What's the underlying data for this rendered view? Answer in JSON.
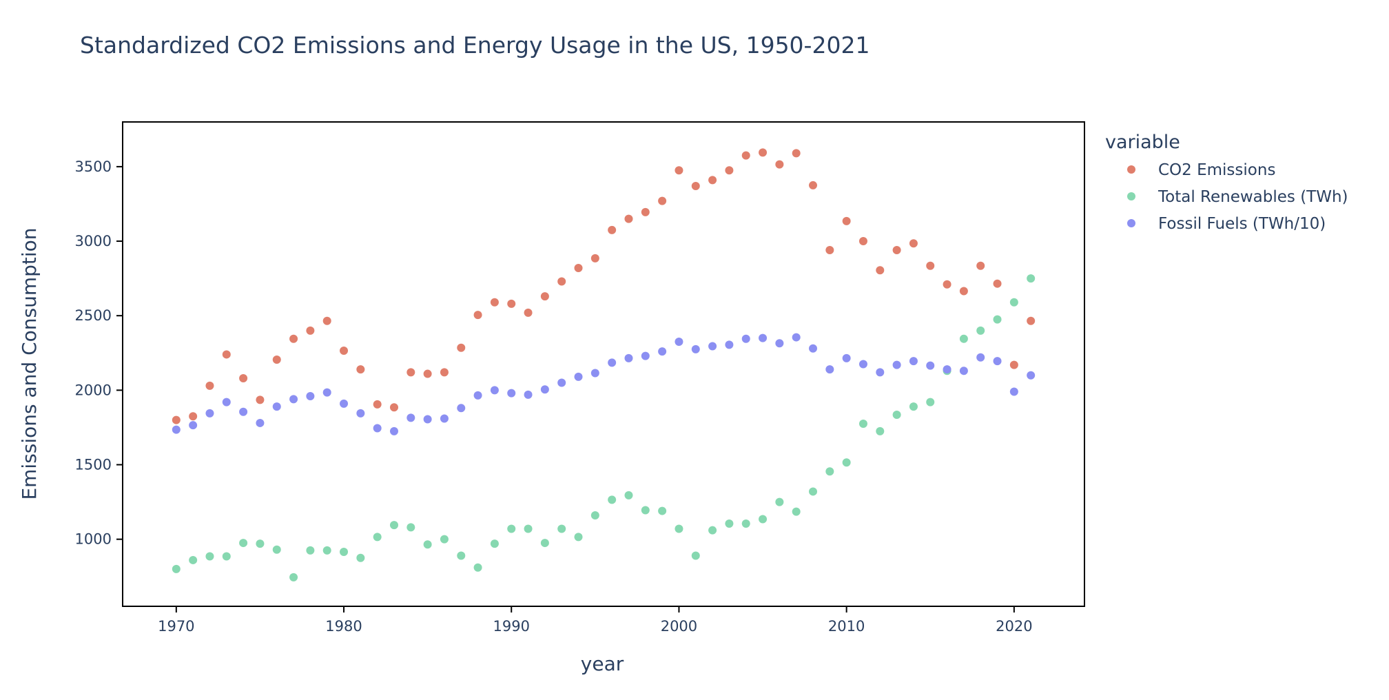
{
  "chart_data": {
    "type": "scatter",
    "title": "Standardized CO2 Emissions and Energy Usage in the US, 1950-2021",
    "xlabel": "year",
    "ylabel": "Emissions and Consumption",
    "xlim": [
      1966.8,
      2024.2
    ],
    "ylim": [
      550,
      3800
    ],
    "x_ticks": [
      1970,
      1980,
      1990,
      2000,
      2010,
      2020
    ],
    "y_ticks": [
      1000,
      1500,
      2000,
      2500,
      3000,
      3500
    ],
    "grid": false,
    "legend": {
      "title": "variable",
      "placement": "right"
    },
    "x": [
      1970,
      1971,
      1972,
      1973,
      1974,
      1975,
      1976,
      1977,
      1978,
      1979,
      1980,
      1981,
      1982,
      1983,
      1984,
      1985,
      1986,
      1987,
      1988,
      1989,
      1990,
      1991,
      1992,
      1993,
      1994,
      1995,
      1996,
      1997,
      1998,
      1999,
      2000,
      2001,
      2002,
      2003,
      2004,
      2005,
      2006,
      2007,
      2008,
      2009,
      2010,
      2011,
      2012,
      2013,
      2014,
      2015,
      2016,
      2017,
      2018,
      2019,
      2020,
      2021
    ],
    "series": [
      {
        "name": "CO2 Emissions",
        "color": "#e07e6b",
        "values": [
          1800,
          1825,
          2030,
          2240,
          2080,
          1935,
          2205,
          2345,
          2400,
          2465,
          2265,
          2140,
          1905,
          1885,
          2120,
          2110,
          2120,
          2285,
          2505,
          2590,
          2580,
          2520,
          2630,
          2730,
          2820,
          2885,
          3075,
          3150,
          3195,
          3270,
          3475,
          3370,
          3410,
          3475,
          3575,
          3595,
          3515,
          3590,
          3375,
          2940,
          3135,
          3000,
          2805,
          2940,
          2985,
          2835,
          2710,
          2665,
          2835,
          2715,
          2170,
          2465
        ]
      },
      {
        "name": "Total Renewables (TWh)",
        "color": "#86d8b0",
        "values": [
          800,
          860,
          885,
          885,
          975,
          970,
          930,
          745,
          925,
          925,
          915,
          875,
          1015,
          1095,
          1080,
          965,
          1000,
          890,
          810,
          970,
          1070,
          1070,
          975,
          1070,
          1015,
          1160,
          1265,
          1295,
          1195,
          1190,
          1070,
          890,
          1060,
          1105,
          1105,
          1135,
          1250,
          1185,
          1320,
          1455,
          1515,
          1775,
          1725,
          1835,
          1890,
          1920,
          2130,
          2345,
          2400,
          2475,
          2590,
          2750
        ]
      },
      {
        "name": "Fossil Fuels (TWh/10)",
        "color": "#8b8ff2",
        "values": [
          1735,
          1765,
          1845,
          1920,
          1855,
          1780,
          1890,
          1940,
          1960,
          1985,
          1910,
          1845,
          1745,
          1725,
          1815,
          1805,
          1810,
          1880,
          1965,
          2000,
          1980,
          1970,
          2005,
          2050,
          2090,
          2115,
          2185,
          2215,
          2230,
          2260,
          2325,
          2275,
          2295,
          2305,
          2345,
          2350,
          2315,
          2355,
          2280,
          2140,
          2215,
          2175,
          2120,
          2170,
          2195,
          2165,
          2140,
          2130,
          2220,
          2195,
          1990,
          2100
        ]
      }
    ]
  }
}
